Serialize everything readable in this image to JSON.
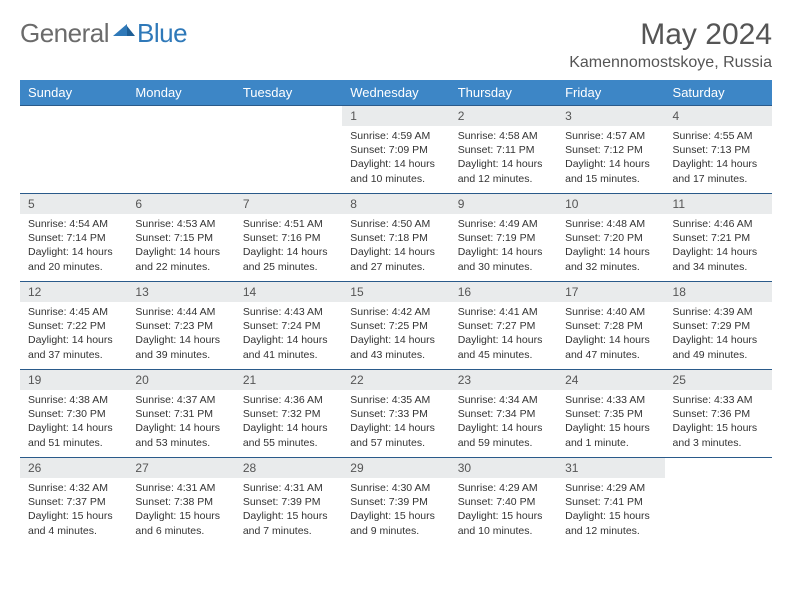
{
  "logo": {
    "general": "General",
    "blue": "Blue"
  },
  "title": "May 2024",
  "location": "Kamennomostskoye, Russia",
  "colors": {
    "header_bg": "#3d86c6",
    "header_text": "#ffffff",
    "daynum_bg": "#e9ebec",
    "border": "#2a5a8a",
    "logo_gray": "#6b6b6b",
    "logo_blue": "#2f79b9"
  },
  "weekdays": [
    "Sunday",
    "Monday",
    "Tuesday",
    "Wednesday",
    "Thursday",
    "Friday",
    "Saturday"
  ],
  "weeks": [
    [
      null,
      null,
      null,
      {
        "n": "1",
        "sr": "4:59 AM",
        "ss": "7:09 PM",
        "dl": "14 hours and 10 minutes."
      },
      {
        "n": "2",
        "sr": "4:58 AM",
        "ss": "7:11 PM",
        "dl": "14 hours and 12 minutes."
      },
      {
        "n": "3",
        "sr": "4:57 AM",
        "ss": "7:12 PM",
        "dl": "14 hours and 15 minutes."
      },
      {
        "n": "4",
        "sr": "4:55 AM",
        "ss": "7:13 PM",
        "dl": "14 hours and 17 minutes."
      }
    ],
    [
      {
        "n": "5",
        "sr": "4:54 AM",
        "ss": "7:14 PM",
        "dl": "14 hours and 20 minutes."
      },
      {
        "n": "6",
        "sr": "4:53 AM",
        "ss": "7:15 PM",
        "dl": "14 hours and 22 minutes."
      },
      {
        "n": "7",
        "sr": "4:51 AM",
        "ss": "7:16 PM",
        "dl": "14 hours and 25 minutes."
      },
      {
        "n": "8",
        "sr": "4:50 AM",
        "ss": "7:18 PM",
        "dl": "14 hours and 27 minutes."
      },
      {
        "n": "9",
        "sr": "4:49 AM",
        "ss": "7:19 PM",
        "dl": "14 hours and 30 minutes."
      },
      {
        "n": "10",
        "sr": "4:48 AM",
        "ss": "7:20 PM",
        "dl": "14 hours and 32 minutes."
      },
      {
        "n": "11",
        "sr": "4:46 AM",
        "ss": "7:21 PM",
        "dl": "14 hours and 34 minutes."
      }
    ],
    [
      {
        "n": "12",
        "sr": "4:45 AM",
        "ss": "7:22 PM",
        "dl": "14 hours and 37 minutes."
      },
      {
        "n": "13",
        "sr": "4:44 AM",
        "ss": "7:23 PM",
        "dl": "14 hours and 39 minutes."
      },
      {
        "n": "14",
        "sr": "4:43 AM",
        "ss": "7:24 PM",
        "dl": "14 hours and 41 minutes."
      },
      {
        "n": "15",
        "sr": "4:42 AM",
        "ss": "7:25 PM",
        "dl": "14 hours and 43 minutes."
      },
      {
        "n": "16",
        "sr": "4:41 AM",
        "ss": "7:27 PM",
        "dl": "14 hours and 45 minutes."
      },
      {
        "n": "17",
        "sr": "4:40 AM",
        "ss": "7:28 PM",
        "dl": "14 hours and 47 minutes."
      },
      {
        "n": "18",
        "sr": "4:39 AM",
        "ss": "7:29 PM",
        "dl": "14 hours and 49 minutes."
      }
    ],
    [
      {
        "n": "19",
        "sr": "4:38 AM",
        "ss": "7:30 PM",
        "dl": "14 hours and 51 minutes."
      },
      {
        "n": "20",
        "sr": "4:37 AM",
        "ss": "7:31 PM",
        "dl": "14 hours and 53 minutes."
      },
      {
        "n": "21",
        "sr": "4:36 AM",
        "ss": "7:32 PM",
        "dl": "14 hours and 55 minutes."
      },
      {
        "n": "22",
        "sr": "4:35 AM",
        "ss": "7:33 PM",
        "dl": "14 hours and 57 minutes."
      },
      {
        "n": "23",
        "sr": "4:34 AM",
        "ss": "7:34 PM",
        "dl": "14 hours and 59 minutes."
      },
      {
        "n": "24",
        "sr": "4:33 AM",
        "ss": "7:35 PM",
        "dl": "15 hours and 1 minute."
      },
      {
        "n": "25",
        "sr": "4:33 AM",
        "ss": "7:36 PM",
        "dl": "15 hours and 3 minutes."
      }
    ],
    [
      {
        "n": "26",
        "sr": "4:32 AM",
        "ss": "7:37 PM",
        "dl": "15 hours and 4 minutes."
      },
      {
        "n": "27",
        "sr": "4:31 AM",
        "ss": "7:38 PM",
        "dl": "15 hours and 6 minutes."
      },
      {
        "n": "28",
        "sr": "4:31 AM",
        "ss": "7:39 PM",
        "dl": "15 hours and 7 minutes."
      },
      {
        "n": "29",
        "sr": "4:30 AM",
        "ss": "7:39 PM",
        "dl": "15 hours and 9 minutes."
      },
      {
        "n": "30",
        "sr": "4:29 AM",
        "ss": "7:40 PM",
        "dl": "15 hours and 10 minutes."
      },
      {
        "n": "31",
        "sr": "4:29 AM",
        "ss": "7:41 PM",
        "dl": "15 hours and 12 minutes."
      },
      null
    ]
  ],
  "labels": {
    "sunrise": "Sunrise:",
    "sunset": "Sunset:",
    "daylight": "Daylight:"
  }
}
